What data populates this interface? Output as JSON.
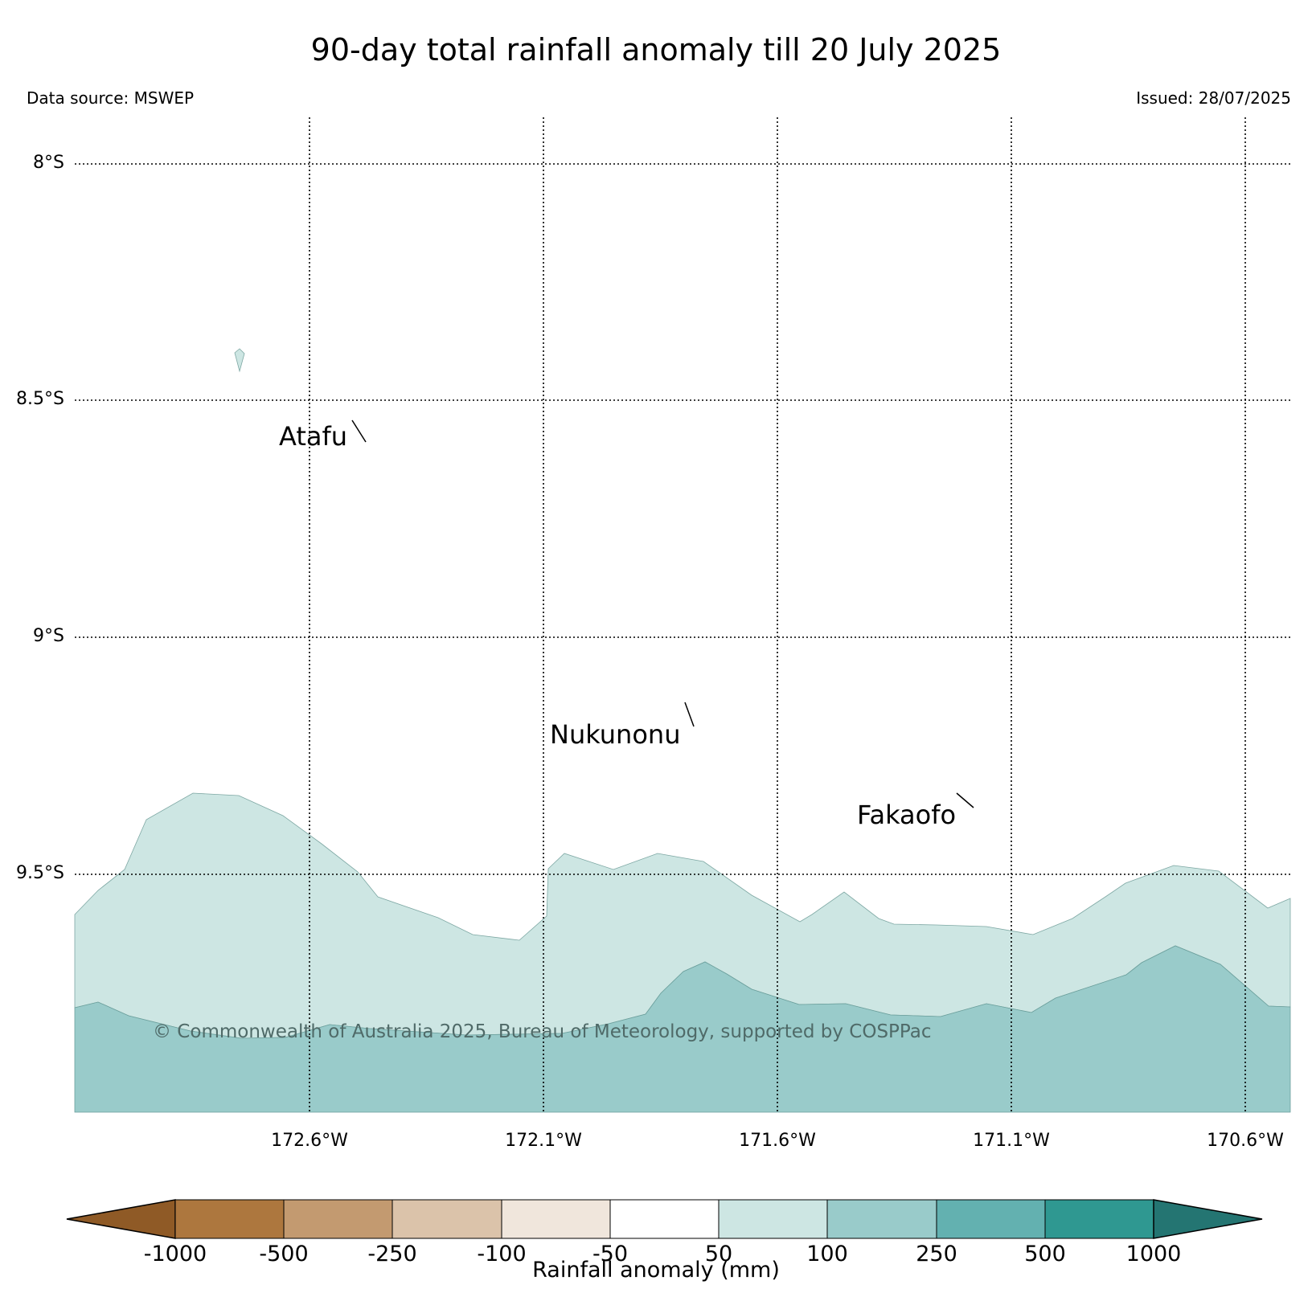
{
  "title": "90-day total rainfall anomaly till 20 July 2025",
  "data_source": "Data source: MSWEP",
  "issued": "Issued: 28/07/2025",
  "copyright": "© Commonwealth of Australia 2025, Bureau of Meteorology, supported by COSPPac",
  "map": {
    "lat_labels": [
      "8°S",
      "8.5°S",
      "9°S",
      "9.5°S"
    ],
    "lon_labels": [
      "172.6°W",
      "172.1°W",
      "171.6°W",
      "171.1°W",
      "170.6°W"
    ],
    "places": {
      "atafu": "Atafu",
      "nukunonu": "Nukunonu",
      "fakaofo": "Fakaofo"
    },
    "anomaly_colors": {
      "50_100": "#cde6e3",
      "100_250": "#99cbca"
    }
  },
  "colorbar": {
    "title": "Rainfall anomaly (mm)",
    "ticks": [
      "-1000",
      "-500",
      "-250",
      "-100",
      "-50",
      "50",
      "100",
      "250",
      "500",
      "1000"
    ],
    "colors": [
      "#8f5a26",
      "#ad773e",
      "#c39a70",
      "#dbc3aa",
      "#f0e6dc",
      "#ffffff",
      "#cde6e3",
      "#99cbca",
      "#63b1b0",
      "#2f9891",
      "#247572"
    ]
  }
}
